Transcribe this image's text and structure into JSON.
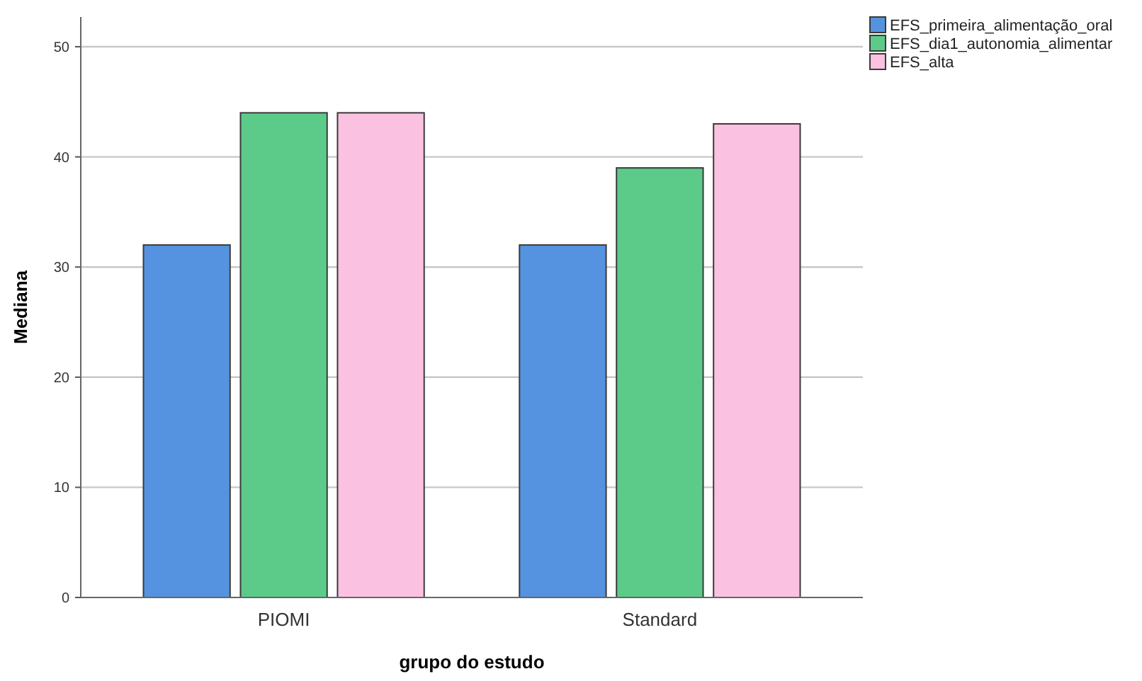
{
  "chart_data": {
    "type": "bar",
    "xlabel": "grupo do estudo",
    "ylabel": "Mediana",
    "categories": [
      "PIOMI",
      "Standard"
    ],
    "series": [
      {
        "name": "EFS_primeira_alimentação_oral",
        "color": "#5593e1",
        "values": [
          32,
          32
        ]
      },
      {
        "name": "EFS_dia1_autonomia_alimentar",
        "color": "#5ccb8a",
        "values": [
          44,
          39
        ]
      },
      {
        "name": "EFS_alta",
        "color": "#fbc1e1",
        "values": [
          44,
          43
        ]
      }
    ],
    "ylim": [
      0,
      52.7
    ],
    "yticks": [
      0,
      10,
      20,
      30,
      40,
      50
    ],
    "grid": "y",
    "legend": "top right"
  }
}
